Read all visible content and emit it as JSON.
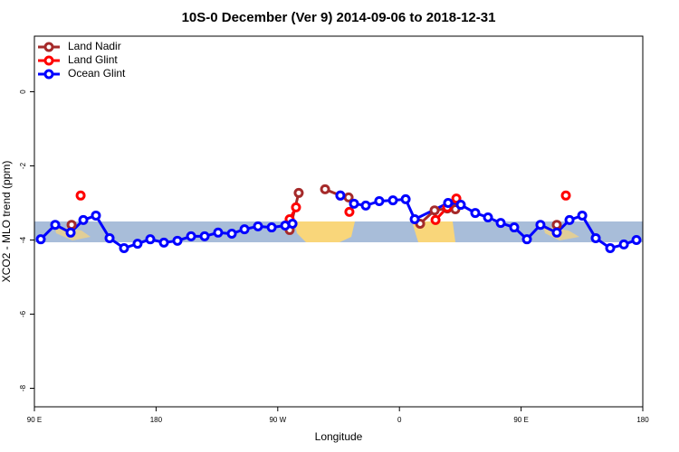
{
  "chart_data": {
    "type": "line",
    "title": "10S-0 December (Ver 9)   2014-09-06 to 2018-12-31",
    "x_label": "Longitude",
    "y_label": "XCO2 - MLO trend (ppm)",
    "xlim": [
      90,
      540
    ],
    "ylim": [
      -8.5,
      1.5
    ],
    "xticks": [
      {
        "value": 90,
        "label": "90 E"
      },
      180,
      {
        "value": 270,
        "label": "90 W"
      },
      {
        "value": 360,
        "label": "0"
      },
      {
        "value": 450,
        "label": "90 E"
      },
      {
        "value": 540,
        "label": "180"
      }
    ],
    "yticks": [
      0,
      -2,
      -4,
      -6,
      -8
    ],
    "legend": "top-left",
    "series": [
      {
        "name": "Land Nadir",
        "color": "#a52a2a",
        "x": [
          117.5,
          null,
          278.8,
          285.5,
          null,
          305.0,
          316.3,
          322.4,
          null,
          375.3,
          386.0,
          395.4,
          401.4,
          null,
          476.4
        ],
        "values": [
          -3.59,
          null,
          -3.73,
          -2.73,
          null,
          -2.63,
          -2.8,
          -2.85,
          null,
          -3.56,
          -3.2,
          -3.15,
          -3.17,
          null,
          -3.59
        ]
      },
      {
        "name": "Land Glint",
        "color": "#ff0000",
        "x": [
          124.2,
          null,
          278.8,
          283.5,
          null,
          323.0,
          null,
          386.7,
          395.4,
          402.1,
          null,
          483.1
        ],
        "values": [
          -2.8,
          null,
          -3.44,
          -3.12,
          null,
          -3.24,
          null,
          -3.46,
          -3.12,
          -2.88,
          null,
          -2.8
        ]
      },
      {
        "name": "Ocean Glint",
        "color": "#0000ff",
        "x": [
          94.7,
          105.4,
          116.8,
          126.2,
          135.5,
          145.6,
          156.3,
          166.3,
          175.7,
          185.8,
          195.8,
          205.9,
          215.9,
          225.9,
          236.0,
          245.4,
          255.4,
          265.5,
          275.5,
          280.9,
          null,
          316.3,
          326.4,
          335.1,
          345.1,
          355.2,
          364.6,
          371.3,
          396.0,
          405.4,
          416.1,
          425.5,
          434.9,
          444.9,
          454.3,
          464.3,
          476.4,
          485.8,
          495.2,
          505.2,
          515.9,
          526.0,
          535.3
        ],
        "values": [
          -3.98,
          -3.59,
          -3.8,
          -3.46,
          -3.34,
          -3.95,
          -4.22,
          -4.1,
          -3.98,
          -4.07,
          -4.02,
          -3.9,
          -3.9,
          -3.8,
          -3.83,
          -3.71,
          -3.63,
          -3.66,
          -3.61,
          -3.56,
          null,
          -2.8,
          -3.02,
          -3.07,
          -2.95,
          -2.93,
          -2.9,
          -3.44,
          -3.0,
          -3.05,
          -3.27,
          -3.39,
          -3.54,
          -3.66,
          -3.98,
          -3.59,
          -3.8,
          -3.46,
          -3.34,
          -3.95,
          -4.22,
          -4.12,
          -4.0
        ]
      }
    ]
  }
}
